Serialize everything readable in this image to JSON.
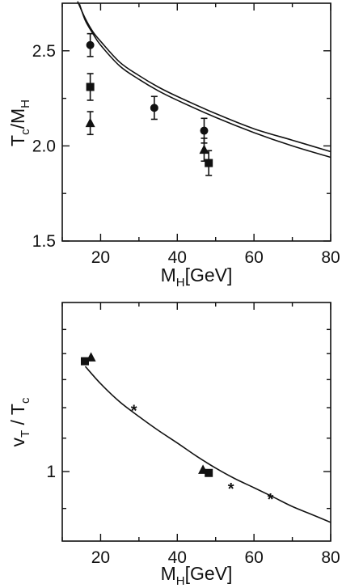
{
  "chart_data": [
    {
      "id": "top",
      "type": "scatter",
      "xlabel": {
        "main": "M",
        "sub": "H",
        "unit": "[GeV]"
      },
      "ylabel": {
        "main1": "T",
        "sub1": "c",
        "sep": "/",
        "main2": "M",
        "sub2": "H"
      },
      "xlim": [
        10,
        80
      ],
      "ylim": [
        1.5,
        2.75
      ],
      "x_ticks": [
        20,
        40,
        60,
        80
      ],
      "x_minor_ticks": [
        10,
        30,
        50,
        70
      ],
      "y_ticks": [
        1.5,
        2.0,
        2.5
      ],
      "y_tick_labels": [
        "1.5",
        "2.0",
        "2.5"
      ],
      "y_minor_ticks": [
        1.75,
        2.25
      ],
      "grid": false,
      "series": [
        {
          "marker": "circle",
          "points": [
            {
              "x": 17.3,
              "y": 2.53,
              "err": 0.06
            },
            {
              "x": 34.0,
              "y": 2.2,
              "err": 0.06
            },
            {
              "x": 47.0,
              "y": 2.08,
              "err": 0.065
            }
          ]
        },
        {
          "marker": "square",
          "points": [
            {
              "x": 17.3,
              "y": 2.31,
              "err": 0.07
            },
            {
              "x": 48.2,
              "y": 1.91,
              "err": 0.065
            }
          ]
        },
        {
          "marker": "triangle",
          "points": [
            {
              "x": 17.3,
              "y": 2.12,
              "err": 0.06
            },
            {
              "x": 47.0,
              "y": 1.98,
              "err": 0.06
            }
          ]
        }
      ],
      "curves": [
        {
          "x": [
            14,
            16,
            18,
            20,
            25,
            30,
            35,
            40,
            50,
            60,
            70,
            80
          ],
          "y": [
            2.76,
            2.67,
            2.6,
            2.55,
            2.44,
            2.37,
            2.31,
            2.26,
            2.17,
            2.09,
            2.03,
            1.97
          ]
        },
        {
          "x": [
            14.5,
            16,
            18,
            20,
            25,
            30,
            35,
            40,
            50,
            60,
            70,
            80
          ],
          "y": [
            2.745,
            2.66,
            2.59,
            2.53,
            2.42,
            2.35,
            2.29,
            2.24,
            2.15,
            2.07,
            2.0,
            1.94
          ]
        }
      ]
    },
    {
      "id": "bottom",
      "type": "scatter",
      "xlabel": {
        "main": "M",
        "sub": "H",
        "unit": "[GeV]"
      },
      "ylabel": {
        "main1": "v",
        "sub1": "T",
        "sep": " / ",
        "main2": "T",
        "sub2": "c"
      },
      "xlim": [
        10,
        80
      ],
      "yscale": "log",
      "ylim": [
        0.82,
        1.62
      ],
      "x_ticks": [
        20,
        40,
        60,
        80
      ],
      "x_minor_ticks": [
        10,
        30,
        50,
        70
      ],
      "y_ticks": [
        1
      ],
      "y_tick_labels": [
        "1"
      ],
      "y_minor_ticks": [
        0.9,
        1.1,
        1.2,
        1.3,
        1.4,
        1.5
      ],
      "grid": false,
      "series": [
        {
          "marker": "square",
          "points": [
            {
              "x": 15.9,
              "y": 1.37
            },
            {
              "x": 48.2,
              "y": 0.996
            }
          ]
        },
        {
          "marker": "triangle",
          "points": [
            {
              "x": 17.5,
              "y": 1.385
            },
            {
              "x": 46.7,
              "y": 1.005
            }
          ]
        },
        {
          "marker": "star",
          "points": [
            {
              "x": 28.7,
              "y": 1.19
            },
            {
              "x": 54.0,
              "y": 0.953
            },
            {
              "x": 64.3,
              "y": 0.925
            }
          ]
        }
      ],
      "curves": [
        {
          "x": [
            16,
            20,
            25,
            30,
            35,
            40,
            45,
            50,
            55,
            60,
            65,
            70,
            75,
            80
          ],
          "y": [
            1.35,
            1.285,
            1.22,
            1.17,
            1.125,
            1.085,
            1.045,
            1.01,
            0.98,
            0.955,
            0.93,
            0.905,
            0.885,
            0.865
          ]
        }
      ]
    }
  ]
}
